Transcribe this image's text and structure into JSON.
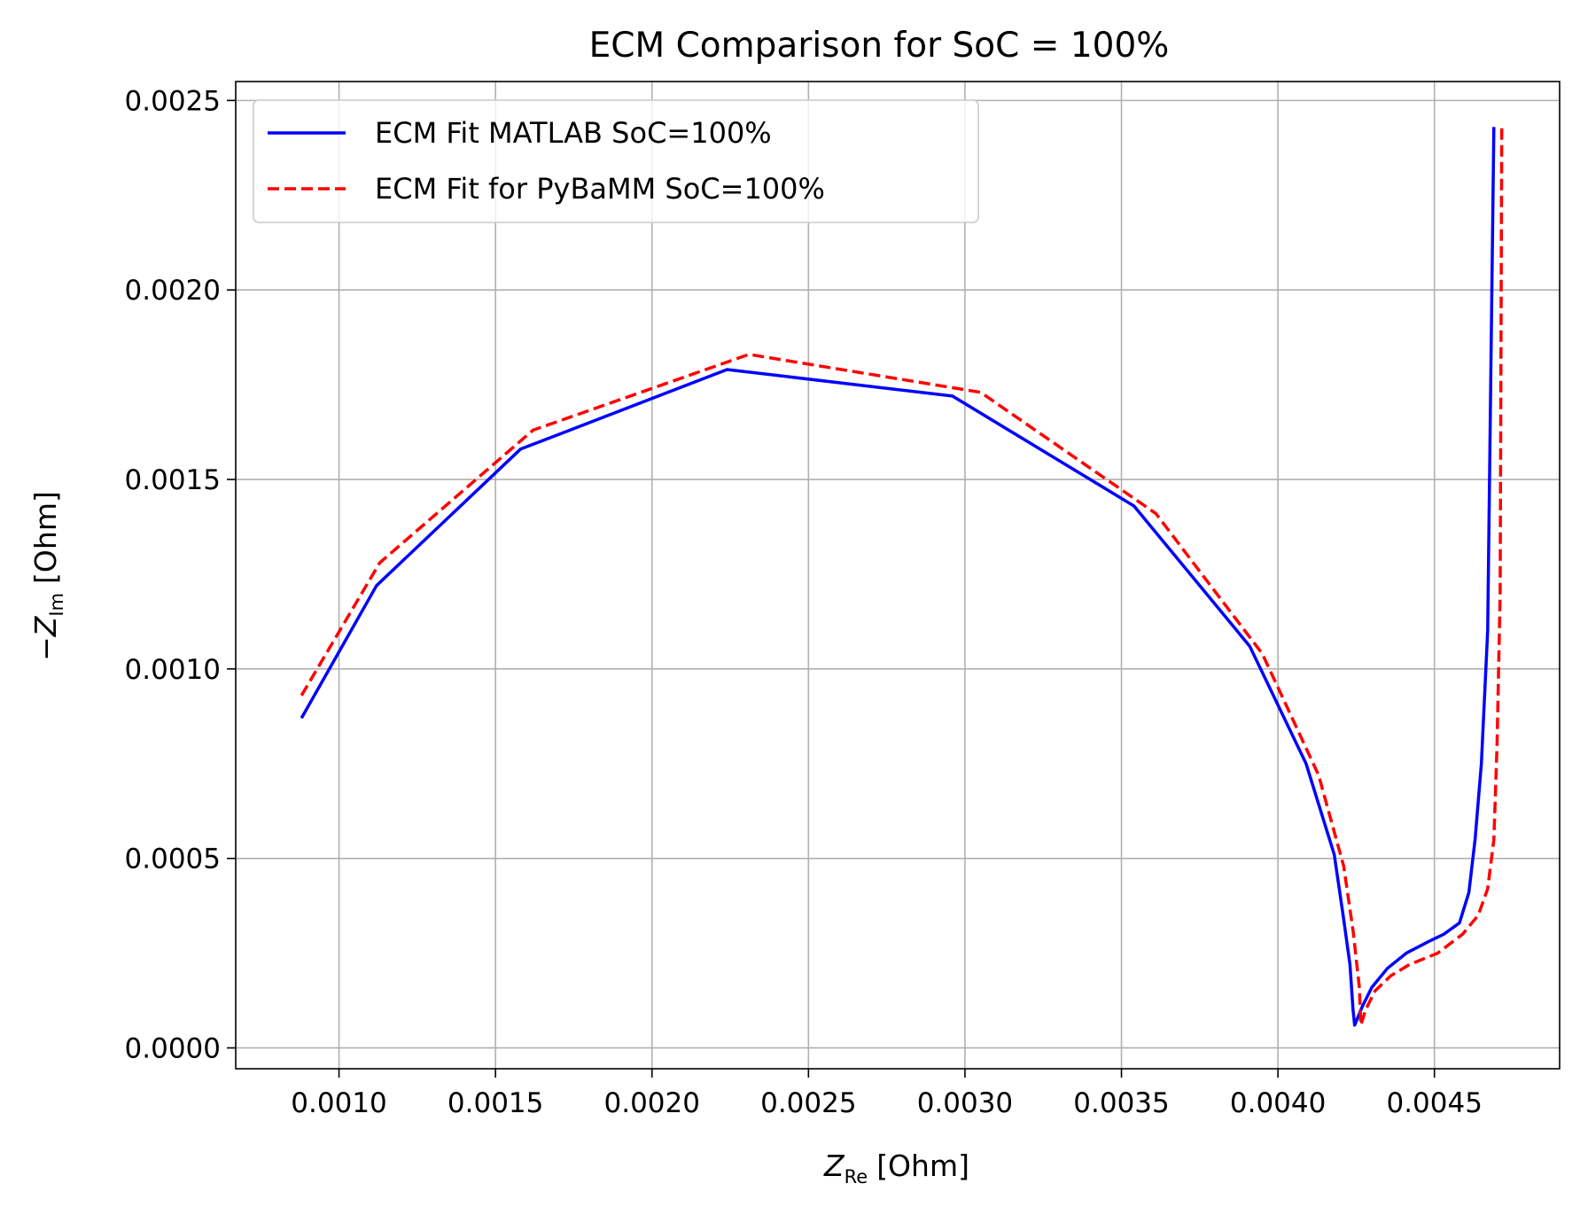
{
  "chart_data": {
    "type": "line",
    "title": "ECM Comparison for SoC = 100%",
    "xlabel": {
      "symbol": "Z",
      "subscript": "Re",
      "unit": "[Ohm]"
    },
    "ylabel": {
      "prefix": "−",
      "symbol": "Z",
      "subscript": "Im",
      "unit": "[Ohm]"
    },
    "xlim": [
      0.00067,
      0.0049
    ],
    "ylim": [
      -5.5e-05,
      0.00255
    ],
    "xticks": [
      0.001,
      0.0015,
      0.002,
      0.0025,
      0.003,
      0.0035,
      0.004,
      0.0045
    ],
    "yticks": [
      0.0,
      0.0005,
      0.001,
      0.0015,
      0.002,
      0.0025
    ],
    "xtick_labels": [
      "0.0010",
      "0.0015",
      "0.0020",
      "0.0025",
      "0.0030",
      "0.0035",
      "0.0040",
      "0.0045"
    ],
    "ytick_labels": [
      "0.0000",
      "0.0005",
      "0.0010",
      "0.0015",
      "0.0020",
      "0.0025"
    ],
    "grid": true,
    "legend_position": "top-left",
    "series": [
      {
        "name": "ECM Fit MATLAB SoC=100%",
        "color": "#0000ff",
        "style": "solid",
        "x": [
          0.00088,
          0.00112,
          0.00158,
          0.00224,
          0.00296,
          0.00354,
          0.00391,
          0.00409,
          0.00418,
          0.00421,
          0.00423,
          0.00424,
          0.004245,
          0.00427,
          0.0043,
          0.00435,
          0.00441,
          0.00448,
          0.00453,
          0.00458,
          0.00461,
          0.00463,
          0.00465,
          0.00467,
          0.00469
        ],
        "y": [
          0.00087,
          0.00122,
          0.00158,
          0.00179,
          0.00172,
          0.00143,
          0.00106,
          0.00075,
          0.00051,
          0.00034,
          0.00022,
          0.0001,
          6e-05,
          0.00011,
          0.00016,
          0.00021,
          0.00025,
          0.00028,
          0.0003,
          0.00033,
          0.00041,
          0.00055,
          0.00075,
          0.0011,
          0.00243
        ]
      },
      {
        "name": "ECM Fit for PyBaMM SoC=100%",
        "color": "#ff0000",
        "style": "dashed",
        "x": [
          0.00088,
          0.00113,
          0.00162,
          0.00231,
          0.00305,
          0.00361,
          0.00395,
          0.00413,
          0.00421,
          0.00424,
          0.00426,
          0.004265,
          0.00428,
          0.00431,
          0.00436,
          0.00442,
          0.00451,
          0.00459,
          0.00464,
          0.00467,
          0.00469,
          0.0047,
          0.00471,
          0.004715
        ],
        "y": [
          0.00093,
          0.00128,
          0.00163,
          0.00183,
          0.00173,
          0.00141,
          0.00104,
          0.00072,
          0.00048,
          0.00031,
          0.00016,
          6e-05,
          0.0001,
          0.00015,
          0.00019,
          0.00022,
          0.00025,
          0.0003,
          0.00035,
          0.00042,
          0.00055,
          0.0008,
          0.0012,
          0.00243
        ]
      }
    ]
  }
}
